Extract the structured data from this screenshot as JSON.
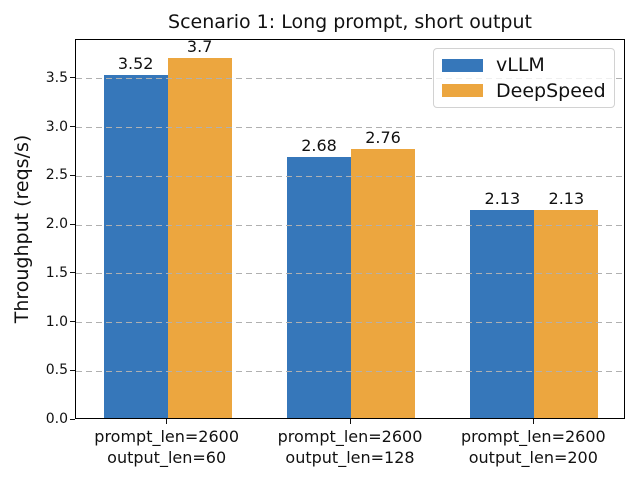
{
  "chart_data": {
    "type": "bar",
    "title": "Scenario 1: Long prompt, short output",
    "xlabel": "",
    "ylabel": "Throughput (reqs/s)",
    "categories": [
      [
        "prompt_len=2600",
        "output_len=60"
      ],
      [
        "prompt_len=2600",
        "output_len=128"
      ],
      [
        "prompt_len=2600",
        "output_len=200"
      ]
    ],
    "series": [
      {
        "name": "vLLM",
        "color": "#3677ba",
        "values": [
          3.52,
          2.68,
          2.13
        ],
        "labels": [
          "3.52",
          "2.68",
          "2.13"
        ]
      },
      {
        "name": "DeepSpeed",
        "color": "#eca63f",
        "values": [
          3.7,
          2.76,
          2.13
        ],
        "labels": [
          "3.7",
          "2.76",
          "2.13"
        ]
      }
    ],
    "ylim": [
      0,
      3.9
    ],
    "ytick_labels": [
      "0.0",
      "0.5",
      "1.0",
      "1.5",
      "2.0",
      "2.5",
      "3.0",
      "3.5"
    ],
    "grid": {
      "axis": "y",
      "style": "dashed",
      "color": "#b0b0b0",
      "drawn_above_bars": true
    },
    "legend": {
      "position": "upper right",
      "entries": [
        "vLLM",
        "DeepSpeed"
      ]
    },
    "bar_value_labels_shown": true
  }
}
